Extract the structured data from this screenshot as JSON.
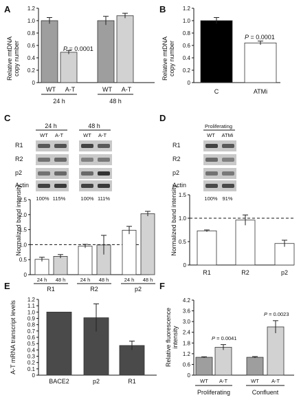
{
  "colors": {
    "wt_bar": "#9e9e9e",
    "at_bar": "#d2d2d2",
    "black_bar": "#000000",
    "white_bar": "#ffffff",
    "dark_bar": "#4a4a4a",
    "blot_dark": "#2a2a2a",
    "blot_bg": "#c9c9c9"
  },
  "panels": {
    "A": {
      "letter": "A",
      "ylabel": [
        "Relative mtDNA",
        "copy number"
      ],
      "bar_labels": [
        "WT",
        "A-T",
        "WT",
        "A-T"
      ],
      "group_labels": [
        "24 h",
        "48 h"
      ],
      "p_text": "= 0.0001"
    },
    "B": {
      "letter": "B",
      "ylabel": [
        "Relative mtDNA",
        "copy number"
      ],
      "bar_labels": [
        "C",
        "ATMi"
      ],
      "p_text": "= 0.0001"
    },
    "C": {
      "letter": "C",
      "blot_groups": [
        "24 h",
        "48 h"
      ],
      "blot_cols": [
        "WT",
        "A-T",
        "WT",
        "A-T"
      ],
      "blot_rows": [
        "R1",
        "R2",
        "p2",
        "Actin"
      ],
      "percents": [
        "100%",
        "115%",
        "100%",
        "111%"
      ],
      "ylabel": "Normalized band intensity",
      "bar_labels": [
        "24 h",
        "48 h",
        "24 h",
        "48 h",
        "24 h",
        "48 h"
      ],
      "group_labels": [
        "R1",
        "R2",
        "p2"
      ]
    },
    "D": {
      "letter": "D",
      "blot_group": "Proliferating",
      "blot_cols": [
        "WT",
        "ATMi"
      ],
      "blot_rows": [
        "R1",
        "R2",
        "p2",
        "Actin"
      ],
      "percents": [
        "100%",
        "91%"
      ],
      "ylabel": "Normalized band intensity",
      "group_labels": [
        "R1",
        "R2",
        "p2"
      ]
    },
    "E": {
      "letter": "E",
      "ylabel": "A-T mRNA transcript levels",
      "bar_labels": [
        "BACE2",
        "p2",
        "R1"
      ]
    },
    "F": {
      "letter": "F",
      "ylabel": [
        "Relative fluorescence",
        "intensity"
      ],
      "bar_labels": [
        "WT",
        "A-T",
        "WT",
        "A-T"
      ],
      "group_labels": [
        "Proliferating",
        "Confluent"
      ],
      "p_texts": [
        "= 0.0041",
        "= 0.0023"
      ]
    }
  },
  "chart_data": [
    {
      "panel": "A",
      "type": "bar",
      "categories": [
        "WT 24 h",
        "A-T 24 h",
        "WT 48 h",
        "A-T 48 h"
      ],
      "values": [
        1.0,
        0.49,
        1.0,
        1.08
      ],
      "errors": [
        0.05,
        0.03,
        0.07,
        0.04
      ],
      "ylim": [
        0,
        1.2
      ],
      "yticks": [
        "0",
        "0.2",
        "0.4",
        "0.6",
        "0.8",
        "1.0",
        "1.2"
      ],
      "ylabel": "Relative mtDNA copy number"
    },
    {
      "panel": "B",
      "type": "bar",
      "categories": [
        "C",
        "ATMi"
      ],
      "values": [
        1.0,
        0.64
      ],
      "errors": [
        0.05,
        0.03
      ],
      "ylim": [
        0,
        1.2
      ],
      "yticks": [
        "0",
        "0.2",
        "0.4",
        "0.6",
        "0.8",
        "1.0",
        "1.2"
      ],
      "ylabel": "Relative mtDNA copy number"
    },
    {
      "panel": "C",
      "type": "bar",
      "categories": [
        "R1 24 h",
        "R1 48 h",
        "R2 24 h",
        "R2 48 h",
        "p2 24 h",
        "p2 48 h"
      ],
      "values": [
        0.51,
        0.61,
        0.95,
        0.99,
        1.48,
        2.03
      ],
      "errors": [
        0.07,
        0.06,
        0.06,
        0.32,
        0.13,
        0.08
      ],
      "ylim": [
        0,
        2.5
      ],
      "yticks": [
        "0",
        "0.5",
        "1.0",
        "1.5",
        "2.0",
        "2.5"
      ],
      "reference_line": 1.0,
      "ylabel": "Normalized band intensity"
    },
    {
      "panel": "D",
      "type": "bar",
      "categories": [
        "R1",
        "R2",
        "p2"
      ],
      "values": [
        0.73,
        0.96,
        0.46
      ],
      "errors": [
        0.02,
        0.11,
        0.07
      ],
      "ylim": [
        0,
        1.5
      ],
      "yticks": [
        "0",
        "0.5",
        "1.0",
        "1.5"
      ],
      "reference_line": 1.0,
      "ylabel": "Normalized band intensity"
    },
    {
      "panel": "E",
      "type": "bar",
      "categories": [
        "BACE2",
        "p2",
        "R1"
      ],
      "values": [
        1.0,
        0.91,
        0.47
      ],
      "errors": [
        0,
        0.22,
        0.07
      ],
      "ylim": [
        0,
        1.2
      ],
      "yticks": [
        "0",
        "0.1",
        "0.2",
        "0.3",
        "0.4",
        "0.5",
        "0.6",
        "0.7",
        "0.8",
        "0.9",
        "1.0",
        "1.1",
        "1.2"
      ],
      "ylabel": "A-T mRNA transcript levels"
    },
    {
      "panel": "F",
      "type": "bar",
      "categories": [
        "WT Proliferating",
        "A-T Proliferating",
        "WT Confluent",
        "A-T Confluent"
      ],
      "values": [
        1.0,
        1.56,
        1.0,
        2.7
      ],
      "errors": [
        0.03,
        0.15,
        0.04,
        0.35
      ],
      "ylim": [
        0,
        4.2
      ],
      "yticks": [
        "0",
        "0.6",
        "1.2",
        "1.8",
        "2.4",
        "3.0",
        "3.6",
        "4.2"
      ],
      "ylabel": "Relative fluorescence intensity"
    }
  ]
}
